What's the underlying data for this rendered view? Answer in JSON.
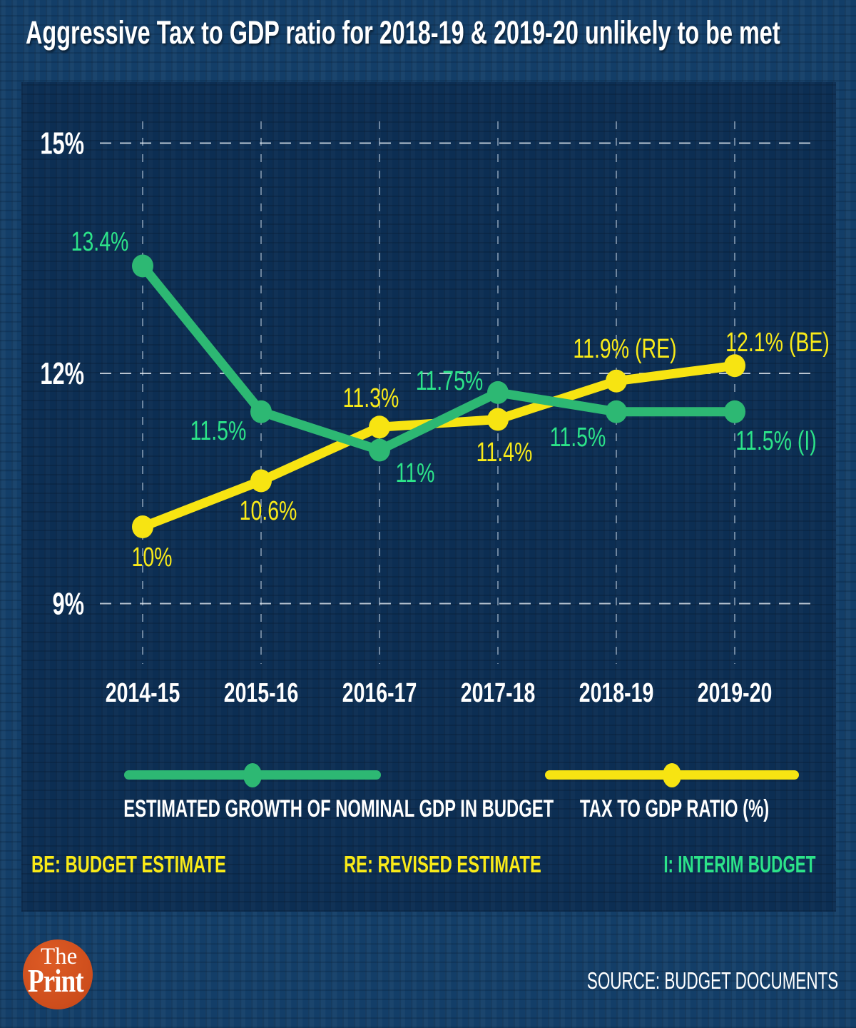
{
  "title": "Aggressive Tax to GDP ratio for 2018-19 & 2019-20 unlikely to be met",
  "colors": {
    "background": "#133e68",
    "panel": "#0c2e53",
    "green_line": "#2db873",
    "green_label": "#2ce389",
    "yellow_line": "#f7e412",
    "yellow_label": "#f9ea18",
    "grid": "#e2eaf1",
    "text": "#ffffff",
    "logo_circle": "#cd4d1c"
  },
  "chart_data": {
    "type": "line",
    "categories": [
      "2014-15",
      "2015-16",
      "2016-17",
      "2017-18",
      "2018-19",
      "2019-20"
    ],
    "y_ticks": [
      {
        "value": 15,
        "label": "15%"
      },
      {
        "value": 12,
        "label": "12%"
      },
      {
        "value": 9,
        "label": "9%"
      }
    ],
    "ylim": [
      9,
      15
    ],
    "grid": true,
    "legend_position": "bottom",
    "series": [
      {
        "name": "ESTIMATED GROWTH OF NOMINAL GDP IN BUDGET",
        "color": "#2db873",
        "label_color": "#2ce389",
        "values": [
          13.4,
          11.5,
          11.0,
          11.75,
          11.5,
          11.5
        ],
        "labels": [
          "13.4%",
          "11.5%",
          "11%",
          "11.75%",
          "11.5%",
          "11.5% (I)"
        ]
      },
      {
        "name": "TAX TO GDP RATIO (%)",
        "color": "#f7e412",
        "label_color": "#f9ea18",
        "values": [
          10.0,
          10.6,
          11.3,
          11.4,
          11.9,
          12.1
        ],
        "labels": [
          "10%",
          "10.6%",
          "11.3%",
          "11.4%",
          "11.9% (RE)",
          "12.1% (BE)"
        ]
      }
    ]
  },
  "legend": {
    "items": [
      {
        "label": "ESTIMATED GROWTH OF NOMINAL GDP IN BUDGET",
        "color": "#2db873"
      },
      {
        "label": "TAX TO GDP RATIO (%)",
        "color": "#f7e412"
      }
    ]
  },
  "notes": [
    {
      "text": "BE: BUDGET ESTIMATE",
      "color": "#f9ea18"
    },
    {
      "text": "RE: REVISED ESTIMATE",
      "color": "#f9ea18"
    },
    {
      "text": "I: INTERIM BUDGET",
      "color": "#2ce389"
    }
  ],
  "footer": {
    "logo_line1": "The",
    "logo_line2": "Print",
    "source": "SOURCE: BUDGET DOCUMENTS"
  }
}
